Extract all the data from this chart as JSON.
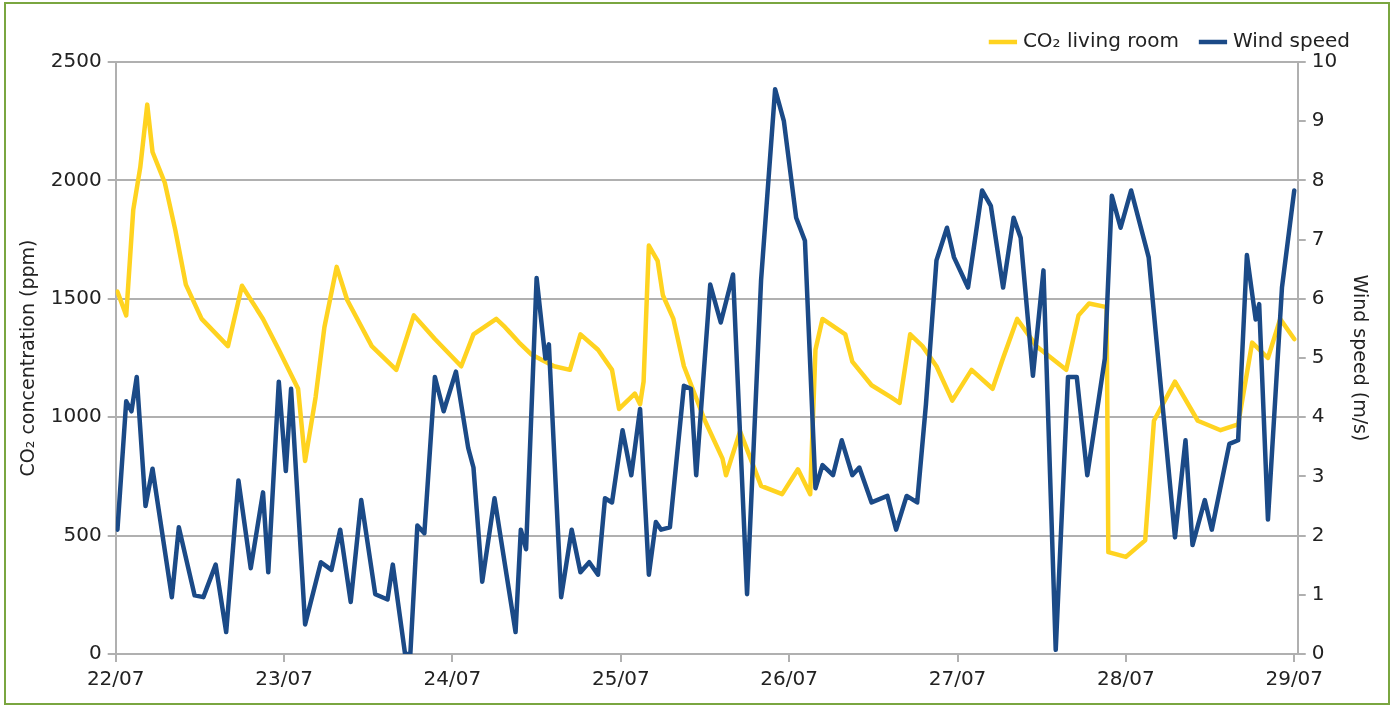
{
  "chart_data": {
    "type": "line",
    "ylabel": "CO₂ concentration (ppm)",
    "y2label": "Wind speed (m/s)",
    "xlim": [
      "--07-22",
      "--07-29T00:30"
    ],
    "xticks": [
      {
        "value": "--07-22",
        "label": "22/07"
      },
      {
        "value": "--07-23",
        "label": "23/07"
      },
      {
        "value": "--07-24",
        "label": "24/07"
      },
      {
        "value": "--07-25",
        "label": "25/07"
      },
      {
        "value": "--07-26",
        "label": "26/07"
      },
      {
        "value": "--07-27",
        "label": "27/07"
      },
      {
        "value": "--07-28",
        "label": "28/07"
      },
      {
        "value": "--07-29",
        "label": "29/07"
      }
    ],
    "ylim": [
      0,
      2500
    ],
    "yticks": [
      0,
      500,
      1000,
      1500,
      2000,
      2500
    ],
    "y2lim": [
      0,
      10
    ],
    "y2ticks": [
      0,
      1,
      2,
      3,
      4,
      5,
      6,
      7,
      8,
      9,
      10
    ],
    "grid": "y",
    "legend": "top right",
    "marker": "none",
    "series": [
      {
        "name": "CO₂ living room",
        "color": "#ffd320",
        "x": [
          "--07-22T00:15",
          "--07-22T01:30",
          "--07-22T02:30",
          "--07-22T03:30",
          "--07-22T04:30",
          "--07-22T05:15",
          "--07-22T07:00",
          "--07-22T08:30",
          "--07-22T10:00",
          "--07-22T12:15",
          "--07-22T16:00",
          "--07-22T18:00",
          "--07-22T21:00",
          "--07-22T23:15",
          "--07-23T02:00",
          "--07-23T03:00",
          "--07-23T04:30",
          "--07-23T05:45",
          "--07-23T07:30",
          "--07-23T09:00",
          "--07-23T12:30",
          "--07-23T16:00",
          "--07-23T18:30",
          "--07-23T21:30",
          "--07-24T01:15",
          "--07-24T03:00",
          "--07-24T06:15",
          "--07-24T07:30",
          "--07-24T09:30",
          "--07-24T11:15",
          "--07-24T14:30",
          "--07-24T16:45",
          "--07-24T18:15",
          "--07-24T20:45",
          "--07-24T22:45",
          "--07-24T23:45",
          "--07-25T02:00",
          "--07-25T02:45",
          "--07-25T03:15",
          "--07-25T04:00",
          "--07-25T05:15",
          "--07-25T06:00",
          "--07-25T07:30",
          "--07-25T09:00",
          "--07-25T12:00",
          "--07-25T14:30",
          "--07-25T15:00",
          "--07-25T17:00",
          "--07-25T20:00",
          "--07-25T23:00",
          "--07-26T01:15",
          "--07-26T03:00",
          "--07-26T03:45",
          "--07-26T04:45",
          "--07-26T08:00",
          "--07-26T09:00",
          "--07-26T11:45",
          "--07-26T14:30",
          "--07-26T15:45",
          "--07-26T17:15",
          "--07-26T19:00",
          "--07-26T21:00",
          "--07-26T23:15",
          "--07-27T02:00",
          "--07-27T05:00",
          "--07-27T06:30",
          "--07-27T08:30",
          "--07-27T11:15",
          "--07-27T15:30",
          "--07-27T17:15",
          "--07-27T18:45",
          "--07-27T21:15",
          "--07-27T21:30",
          "--07-28T00:00",
          "--07-28T02:45",
          "--07-28T04:00",
          "--07-28T07:00",
          "--07-28T10:15",
          "--07-28T13:30",
          "--07-28T16:00",
          "--07-28T18:00",
          "--07-28T20:15",
          "--07-28T22:00",
          "--07-29T00:00"
        ],
        "values": [
          1530,
          1430,
          1875,
          2055,
          2320,
          2120,
          1990,
          1790,
          1560,
          1415,
          1300,
          1555,
          1415,
          1285,
          1120,
          815,
          1085,
          1380,
          1635,
          1495,
          1300,
          1200,
          1430,
          1330,
          1215,
          1350,
          1415,
          1380,
          1315,
          1265,
          1215,
          1200,
          1350,
          1285,
          1200,
          1035,
          1100,
          1055,
          1150,
          1725,
          1660,
          1515,
          1415,
          1215,
          985,
          825,
          755,
          940,
          710,
          675,
          780,
          675,
          1285,
          1415,
          1350,
          1235,
          1135,
          1085,
          1060,
          1350,
          1300,
          1215,
          1070,
          1200,
          1120,
          1250,
          1415,
          1300,
          1200,
          1430,
          1480,
          1465,
          430,
          410,
          480,
          985,
          1150,
          985,
          945,
          970,
          1315,
          1250,
          1415,
          1330
        ]
      },
      {
        "name": "Wind speed",
        "color": "#1b4a87",
        "axis": "y2",
        "x": [
          "--07-22T00:15",
          "--07-22T01:30",
          "--07-22T02:15",
          "--07-22T03:00",
          "--07-22T04:15",
          "--07-22T05:15",
          "--07-22T08:00",
          "--07-22T09:00",
          "--07-22T11:15",
          "--07-22T12:30",
          "--07-22T14:15",
          "--07-22T15:45",
          "--07-22T17:30",
          "--07-22T19:15",
          "--07-22T21:00",
          "--07-22T21:45",
          "--07-22T23:15",
          "--07-23T00:15",
          "--07-23T01:00",
          "--07-23T03:00",
          "--07-23T05:15",
          "--07-23T06:45",
          "--07-23T08:00",
          "--07-23T09:30",
          "--07-23T11:00",
          "--07-23T13:00",
          "--07-23T14:45",
          "--07-23T15:30",
          "--07-23T17:15",
          "--07-23T18:00",
          "--07-23T19:00",
          "--07-23T20:00",
          "--07-23T21:30",
          "--07-23T22:45",
          "--07-24T00:30",
          "--07-24T02:15",
          "--07-24T03:00",
          "--07-24T04:15",
          "--07-24T06:00",
          "--07-24T09:00",
          "--07-24T09:45",
          "--07-24T10:30",
          "--07-24T12:00",
          "--07-24T13:15",
          "--07-24T13:45",
          "--07-24T15:30",
          "--07-24T17:00",
          "--07-24T18:15",
          "--07-24T19:30",
          "--07-24T20:45",
          "--07-24T21:45",
          "--07-24T22:45",
          "--07-25T00:15",
          "--07-25T01:30",
          "--07-25T02:45",
          "--07-25T04:00",
          "--07-25T05:00",
          "--07-25T05:45",
          "--07-25T07:00",
          "--07-25T09:00",
          "--07-25T10:00",
          "--07-25T10:45",
          "--07-25T12:45",
          "--07-25T14:15",
          "--07-25T16:00",
          "--07-25T18:00",
          "--07-25T20:00",
          "--07-25T22:00",
          "--07-25T23:15",
          "--07-26T01:00",
          "--07-26T02:15",
          "--07-26T03:45",
          "--07-26T04:45",
          "--07-26T06:15",
          "--07-26T07:30",
          "--07-26T09:00",
          "--07-26T10:00",
          "--07-26T11:45",
          "--07-26T14:00",
          "--07-26T15:15",
          "--07-26T16:45",
          "--07-26T18:15",
          "--07-26T19:30",
          "--07-26T21:00",
          "--07-26T22:30",
          "--07-26T23:30",
          "--07-27T01:30",
          "--07-27T03:30",
          "--07-27T04:45",
          "--07-27T06:30",
          "--07-27T08:00",
          "--07-27T09:00",
          "--07-27T10:45",
          "--07-27T12:15",
          "--07-27T14:00",
          "--07-27T15:45",
          "--07-27T17:00",
          "--07-27T18:30",
          "--07-27T21:00",
          "--07-27T22:00",
          "--07-27T23:15",
          "--07-28T00:45",
          "--07-28T03:15",
          "--07-28T07:00",
          "--07-28T08:30",
          "--07-28T09:30",
          "--07-28T11:15",
          "--07-28T12:15",
          "--07-28T14:45",
          "--07-28T16:00",
          "--07-28T17:15",
          "--07-28T18:30",
          "--07-28T19:00",
          "--07-28T20:15",
          "--07-28T22:15",
          "--07-29T00:00"
        ],
        "values": [
          2.1,
          4.27,
          4.1,
          4.68,
          2.5,
          3.13,
          0.96,
          2.14,
          0.99,
          0.96,
          1.51,
          0.37,
          2.93,
          1.45,
          2.73,
          1.38,
          4.6,
          3.09,
          4.48,
          0.5,
          1.55,
          1.42,
          2.1,
          0.88,
          2.6,
          1.01,
          0.92,
          1.51,
          0,
          0,
          2.17,
          2.04,
          4.68,
          4.1,
          4.77,
          3.48,
          3.15,
          1.22,
          2.63,
          0.37,
          2.1,
          1.77,
          6.35,
          4.99,
          5.23,
          0.96,
          2.1,
          1.38,
          1.55,
          1.34,
          2.63,
          2.56,
          3.78,
          3.02,
          4.14,
          1.34,
          2.23,
          2.1,
          2.14,
          4.53,
          4.48,
          3.02,
          6.24,
          5.6,
          6.41,
          1.01,
          6.32,
          9.54,
          9.0,
          7.37,
          6.98,
          2.8,
          3.19,
          3.02,
          3.61,
          3.02,
          3.15,
          2.56,
          2.67,
          2.1,
          2.67,
          2.56,
          4.22,
          6.65,
          7.2,
          6.7,
          6.19,
          7.83,
          7.57,
          6.19,
          7.37,
          7.03,
          4.7,
          6.48,
          0.07,
          4.68,
          4.68,
          3.02,
          4.99,
          7.74,
          7.2,
          7.83,
          6.7,
          1.97,
          3.61,
          1.84,
          2.6,
          2.1,
          3.55,
          3.61,
          6.74,
          5.65,
          5.91,
          2.27,
          6.19,
          7.83
        ]
      }
    ]
  }
}
